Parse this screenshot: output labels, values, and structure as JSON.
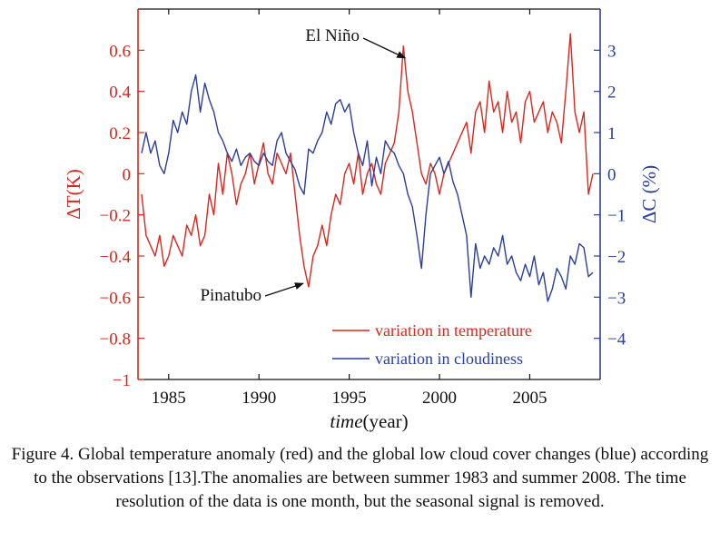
{
  "colors": {
    "temperature": "#d7281e",
    "cloud": "#2a3f9a",
    "axis": "#111111"
  },
  "chart_data": {
    "type": "line",
    "title": "",
    "xlabel_italic": "time",
    "xlabel_rest": "(year)",
    "ylabel": "ΔT(K)",
    "y2label": "ΔC (%)",
    "xlim": [
      1983.3,
      2008.9
    ],
    "ylim": [
      -1,
      0.8
    ],
    "y2lim": [
      -5,
      4
    ],
    "x_ticks": [
      1985,
      1990,
      1995,
      2000,
      2005
    ],
    "x_tick_labels": [
      "1985",
      "1990",
      "1995",
      "2000",
      "2005"
    ],
    "y_ticks": [
      -1,
      -0.8,
      -0.6,
      -0.4,
      -0.2,
      0,
      0.2,
      0.4,
      0.6
    ],
    "y_tick_labels": [
      "−1",
      "−0.8",
      "−0.6",
      "−0.4",
      "−0.2",
      "0",
      "0.2",
      "0.4",
      "0.6"
    ],
    "y2_ticks": [
      -4,
      -3,
      -2,
      -1,
      0,
      1,
      2,
      3
    ],
    "y2_tick_labels": [
      "−4",
      "−3",
      "−2",
      "−1",
      "0",
      "1",
      "2",
      "3"
    ],
    "legend_position": "bottom-right",
    "series": [
      {
        "name": "variation in temperature",
        "axis": "left",
        "x": [
          1983.5,
          1983.75,
          1984.0,
          1984.25,
          1984.5,
          1984.75,
          1985.0,
          1985.25,
          1985.5,
          1985.75,
          1986.0,
          1986.25,
          1986.5,
          1986.75,
          1987.0,
          1987.25,
          1987.5,
          1987.75,
          1988.0,
          1988.25,
          1988.5,
          1988.75,
          1989.0,
          1989.25,
          1989.5,
          1989.75,
          1990.0,
          1990.25,
          1990.5,
          1990.75,
          1991.0,
          1991.25,
          1991.5,
          1991.75,
          1992.0,
          1992.25,
          1992.5,
          1992.75,
          1993.0,
          1993.25,
          1993.5,
          1993.75,
          1994.0,
          1994.25,
          1994.5,
          1994.75,
          1995.0,
          1995.25,
          1995.5,
          1995.75,
          1996.0,
          1996.25,
          1996.5,
          1996.75,
          1997.0,
          1997.25,
          1997.5,
          1997.75,
          1998.0,
          1998.25,
          1998.5,
          1998.75,
          1999.0,
          1999.25,
          1999.5,
          1999.75,
          2000.0,
          2000.25,
          2000.5,
          2000.75,
          2001.0,
          2001.25,
          2001.5,
          2001.75,
          2002.0,
          2002.25,
          2002.5,
          2002.75,
          2003.0,
          2003.25,
          2003.5,
          2003.75,
          2004.0,
          2004.25,
          2004.5,
          2004.75,
          2005.0,
          2005.25,
          2005.5,
          2005.75,
          2006.0,
          2006.25,
          2006.5,
          2006.75,
          2007.0,
          2007.25,
          2007.5,
          2007.75,
          2008.0,
          2008.25,
          2008.5
        ],
        "values": [
          -0.1,
          -0.3,
          -0.35,
          -0.4,
          -0.3,
          -0.45,
          -0.4,
          -0.3,
          -0.35,
          -0.4,
          -0.25,
          -0.3,
          -0.2,
          -0.35,
          -0.3,
          -0.1,
          -0.2,
          0.05,
          -0.1,
          0.1,
          0.0,
          -0.15,
          -0.05,
          0.0,
          0.1,
          -0.05,
          0.05,
          0.15,
          0.0,
          -0.05,
          0.1,
          0.05,
          0.0,
          0.1,
          -0.1,
          -0.3,
          -0.45,
          -0.55,
          -0.4,
          -0.35,
          -0.25,
          -0.35,
          -0.2,
          -0.1,
          -0.15,
          0.0,
          0.05,
          -0.05,
          0.1,
          -0.1,
          0.0,
          0.05,
          -0.05,
          -0.1,
          0.05,
          0.1,
          0.15,
          0.3,
          0.62,
          0.4,
          0.3,
          0.15,
          0.0,
          -0.05,
          0.05,
          0.0,
          -0.1,
          0.0,
          0.05,
          0.1,
          0.15,
          0.2,
          0.25,
          0.1,
          0.3,
          0.35,
          0.2,
          0.45,
          0.3,
          0.35,
          0.2,
          0.4,
          0.25,
          0.3,
          0.15,
          0.35,
          0.4,
          0.25,
          0.3,
          0.35,
          0.2,
          0.3,
          0.25,
          0.15,
          0.4,
          0.68,
          0.3,
          0.2,
          0.3,
          -0.1,
          0.0
        ]
      },
      {
        "name": "variation in cloudiness",
        "axis": "right",
        "x": [
          1983.5,
          1983.75,
          1984.0,
          1984.25,
          1984.5,
          1984.75,
          1985.0,
          1985.25,
          1985.5,
          1985.75,
          1986.0,
          1986.25,
          1986.5,
          1986.75,
          1987.0,
          1987.25,
          1987.5,
          1987.75,
          1988.0,
          1988.25,
          1988.5,
          1988.75,
          1989.0,
          1989.25,
          1989.5,
          1989.75,
          1990.0,
          1990.25,
          1990.5,
          1990.75,
          1991.0,
          1991.25,
          1991.5,
          1991.75,
          1992.0,
          1992.25,
          1992.5,
          1992.75,
          1993.0,
          1993.25,
          1993.5,
          1993.75,
          1994.0,
          1994.25,
          1994.5,
          1994.75,
          1995.0,
          1995.25,
          1995.5,
          1995.75,
          1996.0,
          1996.25,
          1996.5,
          1996.75,
          1997.0,
          1997.25,
          1997.5,
          1997.75,
          1998.0,
          1998.25,
          1998.5,
          1998.75,
          1999.0,
          1999.25,
          1999.5,
          1999.75,
          2000.0,
          2000.25,
          2000.5,
          2000.75,
          2001.0,
          2001.25,
          2001.5,
          2001.75,
          2002.0,
          2002.25,
          2002.5,
          2002.75,
          2003.0,
          2003.25,
          2003.5,
          2003.75,
          2004.0,
          2004.25,
          2004.5,
          2004.75,
          2005.0,
          2005.25,
          2005.5,
          2005.75,
          2006.0,
          2006.25,
          2006.5,
          2006.75,
          2007.0,
          2007.25,
          2007.5,
          2007.75,
          2008.0,
          2008.25,
          2008.5
        ],
        "values": [
          0.5,
          1.0,
          0.5,
          0.8,
          0.2,
          0.0,
          0.5,
          1.3,
          1.0,
          1.5,
          1.2,
          2.0,
          2.4,
          1.5,
          2.2,
          1.8,
          1.5,
          1.0,
          0.8,
          0.5,
          0.3,
          0.6,
          0.2,
          0.4,
          0.5,
          0.3,
          0.2,
          0.5,
          0.3,
          0.2,
          0.8,
          1.0,
          0.5,
          0.3,
          0.1,
          -0.3,
          -0.5,
          0.6,
          0.5,
          0.8,
          1.0,
          1.5,
          1.2,
          1.7,
          1.8,
          1.5,
          1.7,
          1.0,
          0.5,
          0.2,
          0.8,
          -0.3,
          0.4,
          0.0,
          0.8,
          0.6,
          0.5,
          0.2,
          0.0,
          -0.5,
          -0.8,
          -1.5,
          -2.3,
          -1.0,
          0.0,
          0.2,
          0.4,
          0.0,
          0.3,
          -0.2,
          -0.5,
          -1.0,
          -1.5,
          -3.0,
          -1.7,
          -2.3,
          -2.0,
          -2.2,
          -1.8,
          -2.0,
          -1.5,
          -2.2,
          -2.0,
          -2.4,
          -2.6,
          -2.2,
          -2.5,
          -2.0,
          -2.7,
          -2.4,
          -3.1,
          -2.8,
          -2.3,
          -2.5,
          -2.8,
          -2.0,
          -2.2,
          -1.7,
          -1.8,
          -2.5,
          -2.4
        ]
      }
    ],
    "annotations": [
      {
        "text": "El Niño",
        "x": 1998.0,
        "y": 0.58,
        "axis": "left"
      },
      {
        "text": "Pinatubo",
        "x": 1992.6,
        "y": -0.52,
        "axis": "left"
      }
    ]
  },
  "caption": "Figure 4. Global temperature anomaly (red) and the global low cloud cover changes (blue) according to the observations [13].The anomalies are between summer 1983 and summer 2008. The time resolution of the data is one month, but the seasonal signal is removed."
}
